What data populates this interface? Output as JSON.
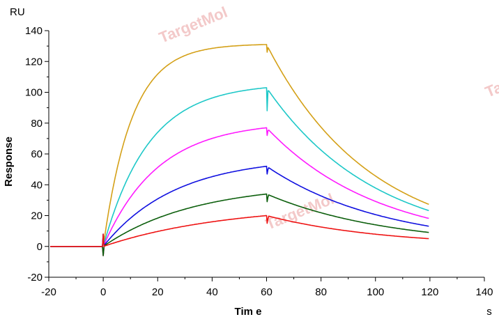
{
  "chart_data": {
    "type": "line",
    "xlabel": "Tim e",
    "ylabel": "Response",
    "x_unit": "s",
    "y_unit": "RU",
    "xlim": [
      -20,
      140
    ],
    "ylim": [
      -20,
      140
    ],
    "xticks": [
      -20,
      0,
      20,
      40,
      60,
      80,
      100,
      120,
      140
    ],
    "yticks": [
      -20,
      0,
      20,
      40,
      60,
      80,
      100,
      120,
      140
    ],
    "grid": false,
    "series": [
      {
        "color": "#d4a017",
        "plateau": 131,
        "ka_rate": 0.095,
        "end_value": 27
      },
      {
        "color": "#1ec8c8",
        "plateau": 103,
        "ka_rate": 0.06,
        "end_value": 23
      },
      {
        "color": "#ff1aff",
        "plateau": 77,
        "ka_rate": 0.05,
        "end_value": 18
      },
      {
        "color": "#1010e0",
        "plateau": 52,
        "ka_rate": 0.038,
        "end_value": 13
      },
      {
        "color": "#0b5e0b",
        "plateau": 34,
        "ka_rate": 0.03,
        "end_value": 9
      },
      {
        "color": "#ee1111",
        "plateau": 20,
        "ka_rate": 0.022,
        "end_value": 5
      }
    ],
    "association_start": 0,
    "dissociation_start": 60,
    "end_time": 120,
    "watermarks": [
      "TargetMol",
      "TargetMol",
      "Ta"
    ]
  }
}
